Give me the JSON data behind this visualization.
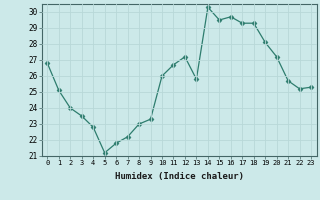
{
  "x": [
    0,
    1,
    2,
    3,
    4,
    5,
    6,
    7,
    8,
    9,
    10,
    11,
    12,
    13,
    14,
    15,
    16,
    17,
    18,
    19,
    20,
    21,
    22,
    23
  ],
  "y": [
    26.8,
    25.1,
    24.0,
    23.5,
    22.8,
    21.2,
    21.8,
    22.2,
    23.0,
    23.3,
    26.0,
    26.7,
    27.2,
    25.8,
    30.3,
    29.5,
    29.7,
    29.3,
    29.3,
    28.1,
    27.2,
    25.7,
    25.2,
    25.3
  ],
  "line_color": "#2e7d6e",
  "marker": "D",
  "marker_size": 2.5,
  "bg_color": "#cce9e9",
  "grid_color": "#b8d8d8",
  "xlabel": "Humidex (Indice chaleur)",
  "ylim": [
    21,
    30.5
  ],
  "yticks": [
    21,
    22,
    23,
    24,
    25,
    26,
    27,
    28,
    29,
    30
  ],
  "xticks": [
    0,
    1,
    2,
    3,
    4,
    5,
    6,
    7,
    8,
    9,
    10,
    11,
    12,
    13,
    14,
    15,
    16,
    17,
    18,
    19,
    20,
    21,
    22,
    23
  ]
}
